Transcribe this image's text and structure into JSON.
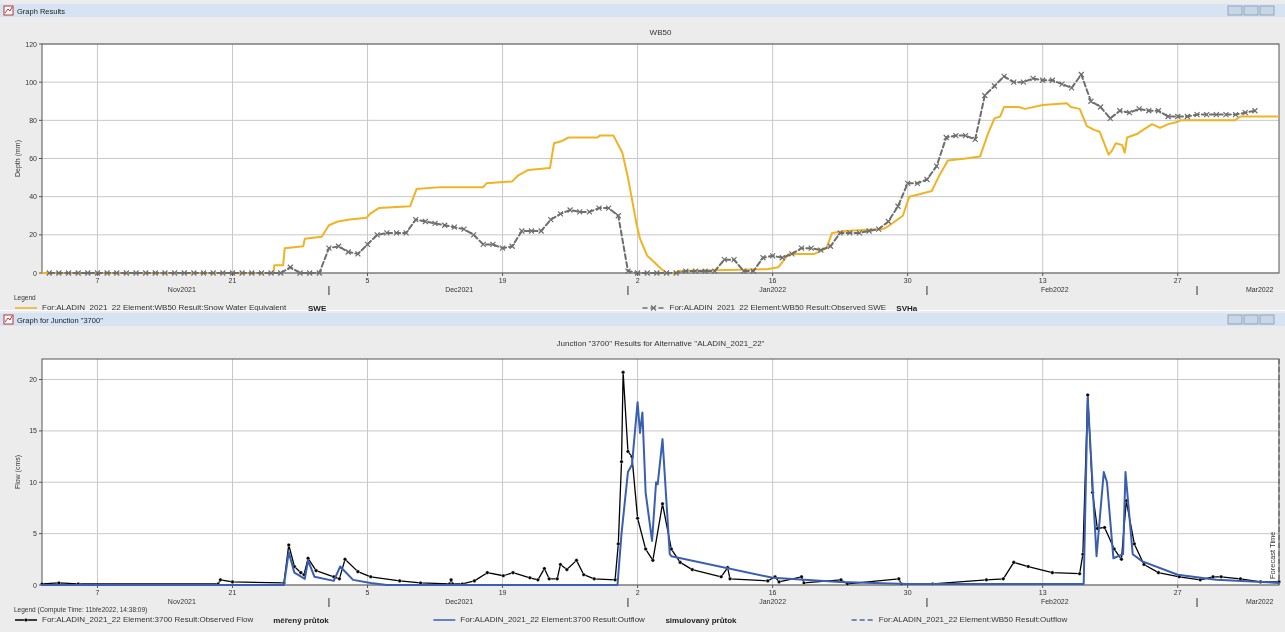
{
  "chart_data": [
    {
      "type": "line",
      "title": "WB50",
      "ylabel": "Depth (mm)",
      "legend": "bottom",
      "legend_title": "Legend",
      "grid": true,
      "annotations": [
        "Graph Results",
        "SWE",
        "SVHa"
      ],
      "xlim": [
        "2021-11-01T06:00",
        "2022-03-09T12:00"
      ],
      "xticks": [
        {
          "value": "2021-11-07",
          "label": "7"
        },
        {
          "value": "2021-11-21",
          "label": "21"
        },
        {
          "value": "2021-12-05",
          "label": "5"
        },
        {
          "value": "2021-12-19",
          "label": "19"
        },
        {
          "value": "2022-01-02",
          "label": "2"
        },
        {
          "value": "2022-01-16",
          "label": "16"
        },
        {
          "value": "2022-01-30",
          "label": "30"
        },
        {
          "value": "2022-02-13",
          "label": "13"
        },
        {
          "value": "2022-02-27",
          "label": "27"
        }
      ],
      "x2lim": [
        "2021-11-01T06:00",
        "2022-03-09T12:00"
      ],
      "x2ticks": [
        {
          "value": "2021-11-15T18:00",
          "label": "Nov2021"
        },
        {
          "value": "2021-12-14T12:00",
          "label": "Dec2021"
        },
        {
          "value": "2022-01-16",
          "label": "Jan2022"
        },
        {
          "value": "2022-02-14T06:00",
          "label": "Feb2022"
        },
        {
          "value": "2022-03-07T12:00",
          "label": "Mar2022"
        }
      ],
      "ylim": [
        0,
        120
      ],
      "yticks": [
        0,
        20,
        40,
        60,
        80,
        100,
        120
      ],
      "series": [
        {
          "name": "For:ALADIN_2021_22 Element:WB50 Result:Snow Water Equivalent",
          "color": "#f0b323",
          "marker": "none",
          "line_style": "solid",
          "x": [
            "2021-11-01T06:00",
            "2021-11-25T06:00",
            "2021-11-25T08:00",
            "2021-11-26T06:00",
            "2021-11-26T10:00",
            "2021-11-28T08:00",
            "2021-11-28T12:00",
            "2021-11-30T06:00",
            "2021-12-01T00:00",
            "2021-12-01T22:00",
            "2021-12-03T04:00",
            "2021-12-04T22:00",
            "2021-12-05T06:00",
            "2021-12-06T04:00",
            "2021-12-09T10:00",
            "2021-12-10T02:00",
            "2021-12-12T14:00",
            "2021-12-17T00:00",
            "2021-12-17T08:00",
            "2021-12-20T00:00",
            "2021-12-20T14:00",
            "2021-12-21T16:00",
            "2021-12-23T22:00",
            "2021-12-24T08:00",
            "2021-12-25T02:00",
            "2021-12-25T20:00",
            "2021-12-28T20:00",
            "2021-12-29T02:00",
            "2021-12-30T12:00",
            "2021-12-31T10:00",
            "2022-01-01T00:00",
            "2022-01-01T22:00",
            "2022-01-02T06:00",
            "2022-01-03T00:00",
            "2022-01-04T12:00",
            "2022-01-05T00:00",
            "2022-01-06T02:00",
            "2022-01-06T04:00",
            "2022-01-15T10:00",
            "2022-01-16T14:00",
            "2022-01-17T16:00",
            "2022-01-20T08:00",
            "2022-01-21T14:00",
            "2022-01-22T04:00",
            "2022-01-23T12:00",
            "2022-01-27T10:00",
            "2022-01-27T20:00",
            "2022-01-28T16:00",
            "2022-01-29T12:00",
            "2022-01-30T04:00",
            "2022-01-31T00:00",
            "2022-02-01T12:00",
            "2022-02-02T04:00",
            "2022-02-03T04:00",
            "2022-02-05T00:00",
            "2022-02-06T12:00",
            "2022-02-07T08:00",
            "2022-02-08T00:00",
            "2022-02-08T14:00",
            "2022-02-09T00:00",
            "2022-02-10T12:00",
            "2022-02-11T04:00",
            "2022-02-13T00:00",
            "2022-02-15T12:00",
            "2022-02-15T22:00",
            "2022-02-16T20:00",
            "2022-02-17T14:00",
            "2022-02-18T08:00",
            "2022-02-18T22:00",
            "2022-02-19T20:00",
            "2022-02-20T04:00",
            "2022-02-20T14:00",
            "2022-02-21T06:00",
            "2022-02-21T12:00",
            "2022-02-21T18:00",
            "2022-02-22T20:00",
            "2022-02-23T10:00",
            "2022-02-24T08:00",
            "2022-02-25T04:00",
            "2022-02-26T00:00",
            "2022-02-26T20:00",
            "2022-02-27T08:00",
            "2022-03-04T22:00",
            "2022-03-05T12:00",
            "2022-03-09T10:00"
          ],
          "values": [
            0,
            0,
            4,
            4,
            13,
            14,
            18,
            19,
            25,
            27,
            28,
            29,
            31,
            34,
            35,
            44,
            45,
            45,
            47,
            48,
            51,
            54,
            55,
            68,
            69,
            71,
            71,
            72,
            72,
            63,
            50,
            25,
            18,
            9,
            2,
            0,
            0,
            1,
            2,
            3,
            10,
            10,
            13,
            21,
            22,
            23,
            24,
            27,
            30,
            40,
            41,
            43,
            50,
            59,
            60,
            61,
            73,
            81,
            82,
            87,
            87,
            86,
            88,
            89,
            87,
            86,
            77,
            75,
            74,
            62,
            64,
            68,
            67,
            63,
            71,
            73,
            75,
            78,
            76,
            78,
            79,
            80,
            80,
            82,
            82
          ]
        },
        {
          "name": "For:ALADIN_2021_22 Element:WB50 Result:Observed SWE",
          "color": "#6e6e6e",
          "marker": "cross",
          "line_style": "dashed",
          "x": [
            "2021-11-02",
            "2021-11-03",
            "2021-11-04",
            "2021-11-05",
            "2021-11-06",
            "2021-11-07",
            "2021-11-08",
            "2021-11-09",
            "2021-11-10",
            "2021-11-11",
            "2021-11-12",
            "2021-11-13",
            "2021-11-14",
            "2021-11-15",
            "2021-11-16",
            "2021-11-17",
            "2021-11-18",
            "2021-11-19",
            "2021-11-20",
            "2021-11-21",
            "2021-11-22",
            "2021-11-23",
            "2021-11-24",
            "2021-11-25",
            "2021-11-26",
            "2021-11-27",
            "2021-11-28",
            "2021-11-29",
            "2021-11-30",
            "2021-12-01",
            "2021-12-02",
            "2021-12-03",
            "2021-12-04",
            "2021-12-05",
            "2021-12-06",
            "2021-12-07",
            "2021-12-08",
            "2021-12-09",
            "2021-12-10",
            "2021-12-11",
            "2021-12-12",
            "2021-12-13",
            "2021-12-14",
            "2021-12-15",
            "2021-12-16",
            "2021-12-17",
            "2021-12-18",
            "2021-12-19",
            "2021-12-20",
            "2021-12-21",
            "2021-12-22",
            "2021-12-23",
            "2021-12-24",
            "2021-12-25",
            "2021-12-26",
            "2021-12-27",
            "2021-12-28",
            "2021-12-29",
            "2021-12-30",
            "2021-12-31",
            "2022-01-01",
            "2022-01-02",
            "2022-01-03",
            "2022-01-04",
            "2022-01-05",
            "2022-01-06",
            "2022-01-07",
            "2022-01-08",
            "2022-01-09",
            "2022-01-10",
            "2022-01-11",
            "2022-01-12",
            "2022-01-13",
            "2022-01-14",
            "2022-01-15",
            "2022-01-16",
            "2022-01-17",
            "2022-01-18",
            "2022-01-19",
            "2022-01-20",
            "2022-01-21",
            "2022-01-22",
            "2022-01-23",
            "2022-01-24",
            "2022-01-25",
            "2022-01-26",
            "2022-01-27",
            "2022-01-28",
            "2022-01-29",
            "2022-01-30",
            "2022-01-31",
            "2022-02-01",
            "2022-02-02",
            "2022-02-03",
            "2022-02-04",
            "2022-02-05",
            "2022-02-06",
            "2022-02-07",
            "2022-02-08",
            "2022-02-09",
            "2022-02-10",
            "2022-02-11",
            "2022-02-12",
            "2022-02-13",
            "2022-02-14",
            "2022-02-15",
            "2022-02-16",
            "2022-02-17",
            "2022-02-18",
            "2022-02-19",
            "2022-02-20",
            "2022-02-21",
            "2022-02-22",
            "2022-02-23",
            "2022-02-24",
            "2022-02-25",
            "2022-02-26",
            "2022-02-27",
            "2022-02-28",
            "2022-03-01",
            "2022-03-02",
            "2022-03-03",
            "2022-03-04",
            "2022-03-05",
            "2022-03-06",
            "2022-03-07"
          ],
          "values": [
            0,
            0,
            0,
            0,
            0,
            0,
            0,
            0,
            0,
            0,
            0,
            0,
            0,
            0,
            0,
            0,
            0,
            0,
            0,
            0,
            0,
            0,
            0,
            0,
            0,
            3,
            0,
            0,
            0,
            13,
            14,
            11,
            10,
            15,
            20,
            21,
            21,
            21,
            28,
            27,
            26,
            25,
            24,
            23,
            20,
            15,
            15,
            13,
            14,
            22,
            22,
            22,
            28,
            31,
            33,
            32,
            32,
            34,
            34,
            30,
            1,
            0,
            0,
            0,
            0,
            0,
            1,
            1,
            1,
            1,
            7,
            7,
            1,
            1,
            8,
            9,
            8,
            10,
            13,
            13,
            12,
            14,
            21,
            21,
            21,
            22,
            23,
            27,
            35,
            47,
            47,
            49,
            56,
            71,
            72,
            72,
            70,
            93,
            98,
            103,
            100,
            100,
            102,
            101,
            101,
            99,
            97,
            104,
            90,
            87,
            81,
            85,
            84,
            86,
            85,
            85,
            82,
            82,
            82,
            83,
            83,
            83,
            83,
            83,
            84,
            85
          ]
        }
      ]
    },
    {
      "type": "line",
      "title": "Junction \"3700\" Results for Alternative \"ALADIN_2021_22\"",
      "ylabel": "Flow (cms)",
      "legend": "bottom",
      "legend_title": "Legend (Compute Time: 11bře2022, 14:38:09)",
      "grid": true,
      "annotations": [
        "Graph for Junction \"3700\"",
        "měřený průtok",
        "simulovaný průtok"
      ],
      "xlim": [
        "2021-11-01T06:00",
        "2022-03-09T12:00"
      ],
      "xticks": [
        {
          "value": "2021-11-07",
          "label": "7"
        },
        {
          "value": "2021-11-21",
          "label": "21"
        },
        {
          "value": "2021-12-05",
          "label": "5"
        },
        {
          "value": "2021-12-19",
          "label": "19"
        },
        {
          "value": "2022-01-02",
          "label": "2"
        },
        {
          "value": "2022-01-16",
          "label": "16"
        },
        {
          "value": "2022-01-30",
          "label": "30"
        },
        {
          "value": "2022-02-13",
          "label": "13"
        },
        {
          "value": "2022-02-27",
          "label": "27"
        }
      ],
      "x2lim": [
        "2021-11-01T06:00",
        "2022-03-09T12:00"
      ],
      "x2ticks": [
        {
          "value": "2021-11-15T18:00",
          "label": "Nov2021"
        },
        {
          "value": "2021-12-14T12:00",
          "label": "Dec2021"
        },
        {
          "value": "2022-01-16",
          "label": "Jan2022"
        },
        {
          "value": "2022-02-14T06:00",
          "label": "Feb2022"
        },
        {
          "value": "2022-03-07T12:00",
          "label": "Mar2022"
        }
      ],
      "ylim": [
        0,
        22
      ],
      "yticks": [
        0,
        5,
        10,
        15,
        20
      ],
      "ref_lines": [
        {
          "axis": "x",
          "value": "2022-03-09T12:00",
          "label": "Forecast Time",
          "line_style": "dashed",
          "color": "#555555"
        }
      ],
      "series": [
        {
          "name": "For:ALADIN_2021_22 Element:3700 Result:Observed Flow",
          "color": "#000000",
          "marker": "circle",
          "line_style": "solid",
          "x": [
            "2021-11-01T06:00",
            "2021-11-03",
            "2021-11-05",
            "2021-11-19T12:00",
            "2021-11-19T18:00",
            "2021-11-21",
            "2021-11-26T08:00",
            "2021-11-26T20:00",
            "2021-11-27T10:00",
            "2021-11-28T02:00",
            "2021-11-28T10:00",
            "2021-11-28T20:00",
            "2021-11-29T16:00",
            "2021-12-01T12:00",
            "2021-12-02T02:00",
            "2021-12-02T16:00",
            "2021-12-04",
            "2021-12-05T08:00",
            "2021-12-08T08:00",
            "2021-12-10T12:00",
            "2021-12-13T12:00",
            "2021-12-13T16:00",
            "2021-12-13T20:00",
            "2021-12-14T20:00",
            "2021-12-16T02:00",
            "2021-12-17T10:00",
            "2021-12-19T02:00",
            "2021-12-20T02:00",
            "2021-12-21T20:00",
            "2021-12-22T16:00",
            "2021-12-23T08:00",
            "2021-12-23T20:00",
            "2021-12-24T16:00",
            "2021-12-25T00:00",
            "2021-12-25T16:00",
            "2021-12-26T16:00",
            "2021-12-27T10:00",
            "2021-12-28T12:00",
            "2021-12-30T16:00",
            "2021-12-31T00:00",
            "2021-12-31T08:00",
            "2021-12-31T12:00",
            "2022-01-01T00:00",
            "2022-01-01T10:00",
            "2022-01-02T00:00",
            "2022-01-02T20:00",
            "2022-01-03T14:00",
            "2022-01-04T14:00",
            "2022-01-05T12:00",
            "2022-01-06T10:00",
            "2022-01-07T16:00",
            "2022-01-10T16:00",
            "2022-01-11T08:00",
            "2022-01-11T14:00",
            "2022-01-15T12:00",
            "2022-01-16T06:00",
            "2022-01-16T16:00",
            "2022-01-19T00:00",
            "2022-01-19T06:00",
            "2022-01-23T02:00",
            "2022-01-23T18:00",
            "2022-01-29T02:00",
            "2022-01-29T08:00",
            "2022-02-01T14:00",
            "2022-02-07T04:00",
            "2022-02-08T22:00",
            "2022-02-10T00:00",
            "2022-02-11T12:00",
            "2022-02-14T00:00",
            "2022-02-16T20:00",
            "2022-02-17T04:00",
            "2022-02-17T16:00",
            "2022-02-18T04:00",
            "2022-02-18T16:00",
            "2022-02-19T10:00",
            "2022-02-20T10:00",
            "2022-02-21T04:00",
            "2022-02-21T16:00",
            "2022-02-22T12:00",
            "2022-02-23T12:00",
            "2022-02-25T00:00",
            "2022-02-27T04:00",
            "2022-03-01T08:00",
            "2022-03-02T16:00",
            "2022-03-03T12:00",
            "2022-03-05T12:00",
            "2022-03-07T14:00",
            "2022-03-09T12:00"
          ],
          "values": [
            0.1,
            0.2,
            0.1,
            0.1,
            0.5,
            0.3,
            0.2,
            3.9,
            1.8,
            1.2,
            1.0,
            2.6,
            1.4,
            0.8,
            0.6,
            2.5,
            1.3,
            0.8,
            0.4,
            0.2,
            0.1,
            0.5,
            0.1,
            0.1,
            0.4,
            1.2,
            0.9,
            1.2,
            0.7,
            0.5,
            1.6,
            0.6,
            0.6,
            2.0,
            1.5,
            2.4,
            1.0,
            0.6,
            0.5,
            4,
            12,
            20.7,
            13,
            12.5,
            6.5,
            3.5,
            2.4,
            7.9,
            3.5,
            2.2,
            1.5,
            0.8,
            1.7,
            0.6,
            0.4,
            0.8,
            0.3,
            0.8,
            0.2,
            0.5,
            0.1,
            0.6,
            0.1,
            0.1,
            0.5,
            0.6,
            2.2,
            1.8,
            1.2,
            1.1,
            3,
            18.5,
            9,
            5.5,
            5.6,
            3.5,
            2.5,
            8.2,
            4,
            2.0,
            1.2,
            0.8,
            0.5,
            0.8,
            0.8,
            0.6,
            0.3,
            0.3
          ]
        },
        {
          "name": "For:ALADIN_2021_22 Element:3700 Result:Outflow",
          "color": "#3a5fb0",
          "marker": "none",
          "line_style": "solid",
          "x": [
            "2021-11-01T06:00",
            "2021-11-26T08:00",
            "2021-11-26T20:00",
            "2021-11-27T10:00",
            "2021-11-28T12:00",
            "2021-11-28T20:00",
            "2021-11-29T12:00",
            "2021-12-01T12:00",
            "2021-12-02T04:00",
            "2021-12-03T12:00",
            "2021-12-05T08:00",
            "2021-12-07",
            "2021-12-30T22:00",
            "2021-12-31T08:00",
            "2022-01-01T00:00",
            "2022-01-01T10:00",
            "2022-01-02T00:00",
            "2022-01-02T06:00",
            "2022-01-02T12:00",
            "2022-01-02T20:00",
            "2022-01-03T12:00",
            "2022-01-03T22:00",
            "2022-01-04T02:00",
            "2022-01-04T14:00",
            "2022-01-05T08:00",
            "2022-01-05T12:00",
            "2022-01-16T00:00",
            "2022-01-23T00:00",
            "2022-01-30T00:00",
            "2022-02-17T06:00",
            "2022-02-17T16:00",
            "2022-02-18T14:00",
            "2022-02-19T08:00",
            "2022-02-19T16:00",
            "2022-02-20T08:00",
            "2022-02-21T08:00",
            "2022-02-21T14:00",
            "2022-02-22T08:00",
            "2022-02-23T08:00",
            "2022-02-27T00:00",
            "2022-03-03T00:00",
            "2022-03-09T12:00"
          ],
          "values": [
            0,
            0,
            3.2,
            1.2,
            0.6,
            2.4,
            0.8,
            0.4,
            1.8,
            0.5,
            0.2,
            0,
            0,
            5,
            11,
            11.7,
            17.8,
            14.8,
            16.8,
            9,
            4.3,
            10,
            9.8,
            14.2,
            3,
            2.8,
            0.7,
            0.3,
            0.1,
            0.1,
            18.3,
            2.8,
            11,
            10,
            2.6,
            3,
            11,
            3,
            2.3,
            1.0,
            0.5,
            0.2
          ]
        },
        {
          "name": "For:ALADIN_2021_22 Element:WB50 Result:Outflow",
          "color": "#4a6aa8",
          "marker": "none",
          "line_style": "dashed"
        }
      ]
    }
  ]
}
